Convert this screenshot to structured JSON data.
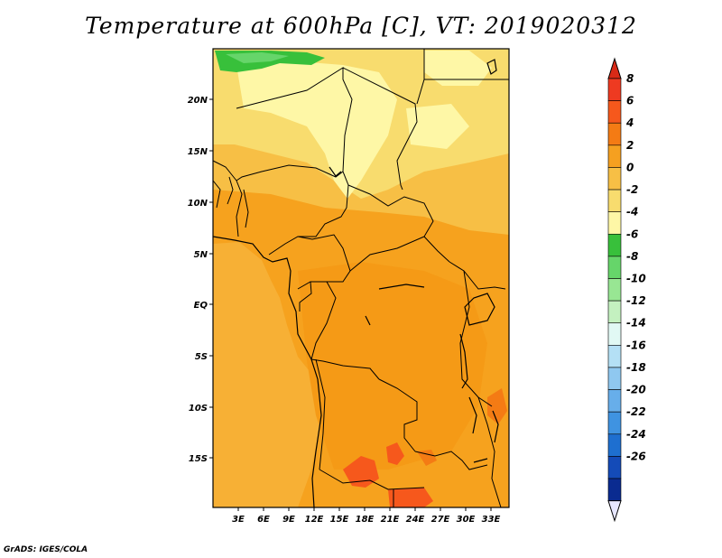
{
  "title": "Temperature at 600hPa [C], VT: 2019020312",
  "credit": "GrADS: IGES/COLA",
  "lat_labels": [
    "20N",
    "15N",
    "10N",
    "5N",
    "EQ",
    "5S",
    "10S",
    "15S"
  ],
  "lon_labels": [
    "3E",
    "6E",
    "9E",
    "12E",
    "15E",
    "18E",
    "21E",
    "24E",
    "27E",
    "30E",
    "33E"
  ],
  "colorbar": {
    "labels": [
      "8",
      "6",
      "4",
      "2",
      "0",
      "-2",
      "-4",
      "-6",
      "-8",
      "-10",
      "-12",
      "-14",
      "-16",
      "-18",
      "-20",
      "-22",
      "-24",
      "-26"
    ],
    "colors": [
      "#ee3a21",
      "#f6581c",
      "#f47b14",
      "#f5a020",
      "#f7bf45",
      "#f8dc6e",
      "#fef7a6",
      "#38c03b",
      "#66d56a",
      "#98e693",
      "#c4f1c0",
      "#e1f9f4",
      "#b4e0f5",
      "#8fc8f0",
      "#67aeea",
      "#3f93e1",
      "#1e6fd0",
      "#144bb8",
      "#0a2b90"
    ],
    "top_arrow_color": "#d82a17",
    "bottom_arrow_color": "#e6e6ff"
  },
  "map_colors": {
    "orange": "#f6a21e",
    "dark_orange": "#f47b14",
    "light_orange": "#f7bf45",
    "yellow": "#f8dc6e",
    "pale_yellow": "#fef7a6",
    "green": "#66d56a",
    "dark_green": "#38c03b",
    "red_orange": "#f6581c"
  }
}
